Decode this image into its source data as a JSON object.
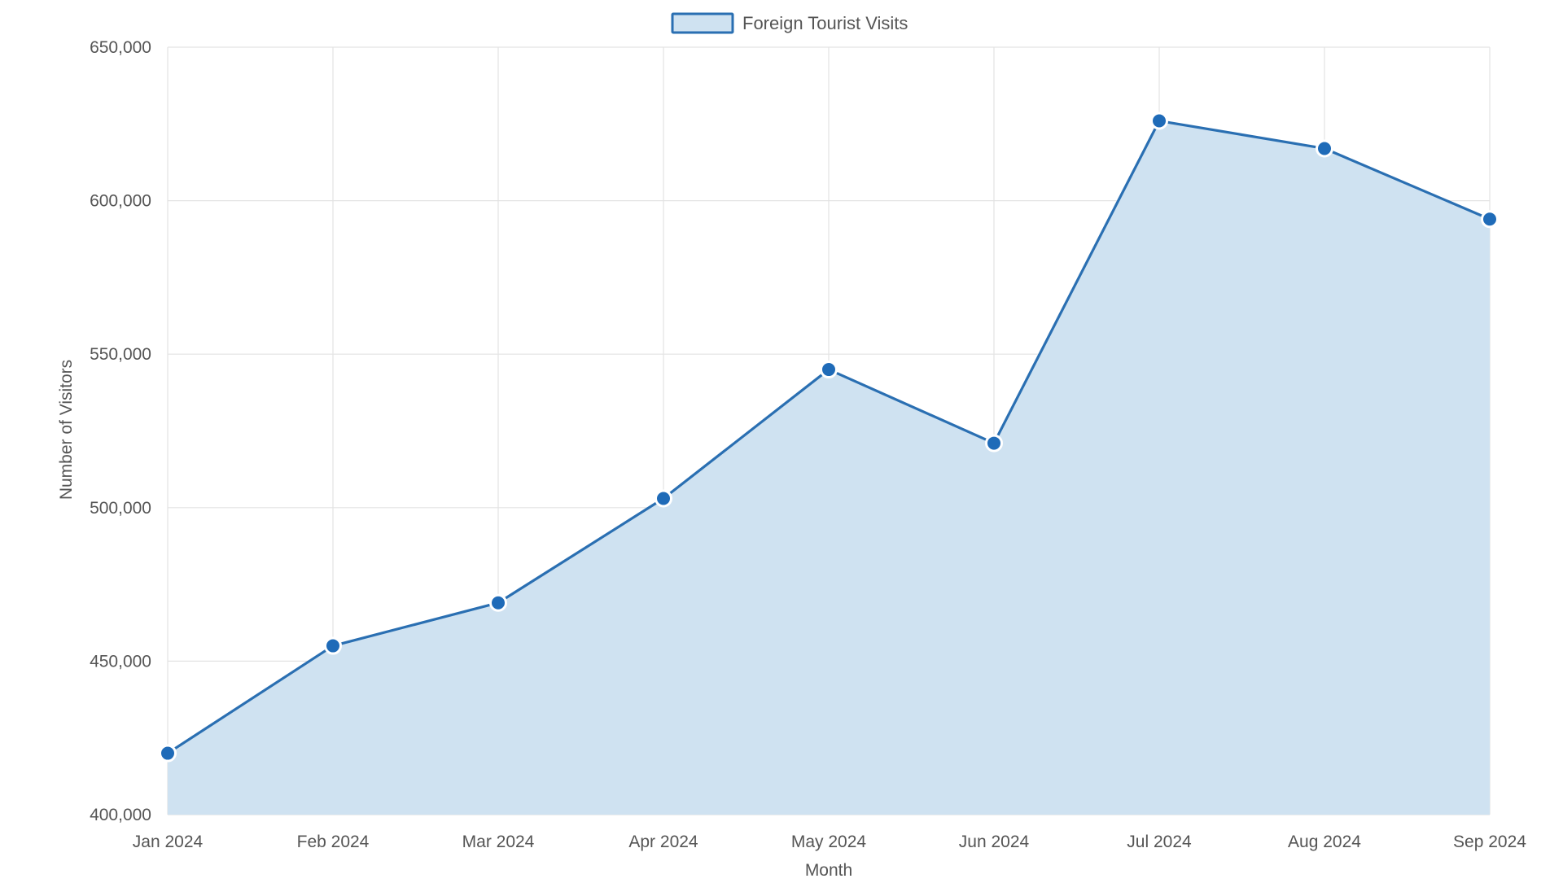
{
  "chart_data": {
    "type": "area",
    "title": "",
    "xlabel": "Month",
    "ylabel": "Number of Visitors",
    "categories": [
      "Jan 2024",
      "Feb 2024",
      "Mar 2024",
      "Apr 2024",
      "May 2024",
      "Jun 2024",
      "Jul 2024",
      "Aug 2024",
      "Sep 2024"
    ],
    "series": [
      {
        "name": "Foreign Tourist Visits",
        "values": [
          420000,
          455000,
          469000,
          503000,
          545000,
          521000,
          626000,
          617000,
          594000
        ],
        "line_color": "#2a6fb2",
        "fill_color": "#cfe2f1",
        "point_color": "#1f6bb8"
      }
    ],
    "ylim": [
      400000,
      650000
    ],
    "yticks": [
      "400,000",
      "450,000",
      "500,000",
      "550,000",
      "600,000",
      "650,000"
    ],
    "ytick_values": [
      400000,
      450000,
      500000,
      550000,
      600000,
      650000
    ],
    "grid": true,
    "legend_position": "top-center"
  }
}
